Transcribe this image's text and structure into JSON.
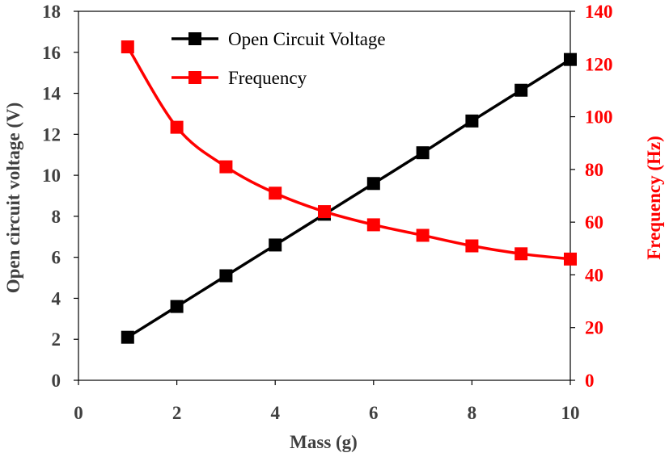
{
  "chart_data": {
    "type": "line",
    "title": "",
    "xlabel": "Mass (g)",
    "ylabel_left": "Open circuit  voltage (V)",
    "ylabel_right": "Frequency (Hz)",
    "x": [
      1,
      2,
      3,
      4,
      5,
      6,
      7,
      8,
      9,
      10
    ],
    "xlim": [
      0,
      10
    ],
    "xticks": [
      "0",
      "2",
      "4",
      "6",
      "8",
      "10"
    ],
    "ylim_left": [
      0,
      18
    ],
    "yticks_left": [
      "0",
      "2",
      "4",
      "6",
      "8",
      "10",
      "12",
      "14",
      "16",
      "18"
    ],
    "ylim_right": [
      0,
      140
    ],
    "yticks_right": [
      "0",
      "20",
      "40",
      "60",
      "80",
      "100",
      "120",
      "140"
    ],
    "grid": false,
    "legend_position": "top-center",
    "series": [
      {
        "name": "Open Circuit Voltage",
        "axis": "left",
        "color": "#000000",
        "marker": "square",
        "values": [
          2.1,
          3.6,
          5.1,
          6.6,
          8.1,
          9.6,
          11.1,
          12.65,
          14.15,
          15.65
        ]
      },
      {
        "name": "Frequency",
        "axis": "right",
        "color": "#ff0000",
        "marker": "square",
        "values": [
          126.5,
          96,
          81,
          71,
          64,
          59,
          55,
          51,
          48,
          46
        ]
      }
    ],
    "colors": {
      "left_axis": "#3c3c3c",
      "right_axis": "#ff0000"
    }
  }
}
